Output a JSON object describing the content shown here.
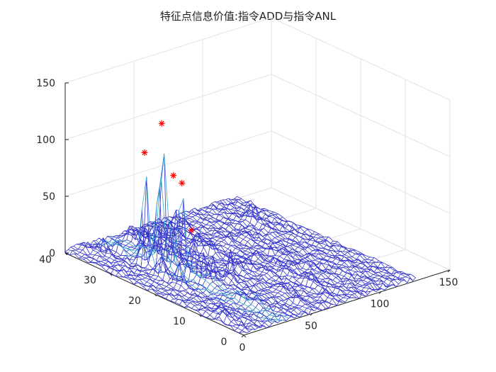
{
  "title": "特征点信息价值:指令ADD与指令ANL",
  "chart_data": {
    "type": "surface",
    "title": "特征点信息价值:指令ADD与指令ANL",
    "xlabel": "",
    "ylabel": "",
    "zlabel": "",
    "x_ticks": [
      0,
      50,
      100,
      150
    ],
    "y_ticks": [
      0,
      10,
      20,
      30,
      40
    ],
    "z_ticks": [
      0,
      50,
      100,
      150
    ],
    "xlim": [
      0,
      150
    ],
    "ylim": [
      0,
      40
    ],
    "zlim": [
      0,
      150
    ],
    "grid": true,
    "mesh_color": "#3333cc",
    "peak_color": "#33aacc",
    "marker_color": "#ff0000",
    "surface_extent": {
      "x": [
        0,
        125
      ],
      "y": [
        0,
        40
      ]
    },
    "peaks": [
      {
        "x": 28,
        "y": 27,
        "z": 127
      },
      {
        "x": 22,
        "y": 29,
        "z": 100
      },
      {
        "x": 30,
        "y": 25,
        "z": 84
      },
      {
        "x": 33,
        "y": 24,
        "z": 78
      },
      {
        "x": 30,
        "y": 21,
        "z": 43
      }
    ]
  }
}
